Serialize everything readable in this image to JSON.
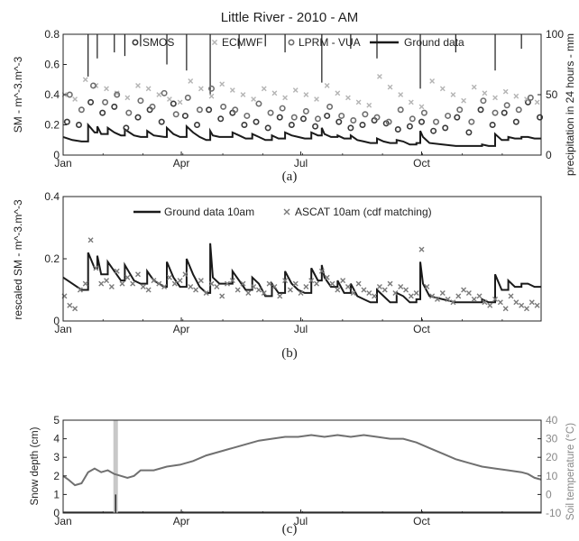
{
  "colors": {
    "ground": "#1a1a1a",
    "smos": "#3a3a3a",
    "ecmwf": "#b4b4b4",
    "lprm": "#6e6e6e",
    "ascat": "#7a7a7a",
    "soil": "#707070",
    "snow_bar": "#c8c8c8",
    "axis": "#222222",
    "right_axis_text": "#888888"
  },
  "chart_data": [
    {
      "type": "scatter",
      "panel_label": "(a)",
      "title": "Little River - 2010 - AM",
      "xlabel": "",
      "ylabel": "SM - m^-3.m^-3",
      "ylabel_right": "precipitation in 24 hours - mm",
      "xticks": [
        "Jan",
        "Apr",
        "Jul",
        "Oct"
      ],
      "xtick_days": [
        1,
        91,
        182,
        274
      ],
      "xlim": [
        1,
        365
      ],
      "ylim": [
        0,
        0.8
      ],
      "yticks": [
        "0",
        "0.2",
        "0.4",
        "0.6",
        "0.8"
      ],
      "yticks_right": [
        "0",
        "50",
        "100"
      ],
      "ylim_right": [
        0,
        100
      ],
      "right_axis_inverted": true,
      "legend": [
        "SMOS",
        "ECMWF",
        "LPRM - VUA",
        "Ground data"
      ],
      "legend_location": "top",
      "series": [
        {
          "name": "Ground data",
          "style": "line",
          "x": [
            1,
            8,
            15,
            20,
            22,
            25,
            27,
            30,
            35,
            40,
            45,
            48,
            55,
            60,
            65,
            70,
            78,
            80,
            85,
            90,
            95,
            100,
            105,
            110,
            113,
            115,
            120,
            130,
            135,
            140,
            145,
            150,
            155,
            160,
            165,
            170,
            175,
            180,
            185,
            190,
            195,
            198,
            200,
            205,
            210,
            215,
            220,
            225,
            230,
            235,
            240,
            245,
            250,
            255,
            260,
            265,
            270,
            273,
            275,
            280,
            290,
            300,
            310,
            320,
            325,
            330,
            335,
            340,
            345,
            350,
            355,
            360,
            365
          ],
          "y": [
            0.12,
            0.1,
            0.09,
            0.2,
            0.18,
            0.15,
            0.19,
            0.14,
            0.18,
            0.15,
            0.13,
            0.17,
            0.13,
            0.12,
            0.16,
            0.13,
            0.12,
            0.18,
            0.14,
            0.12,
            0.19,
            0.15,
            0.12,
            0.1,
            0.16,
            0.13,
            0.12,
            0.15,
            0.13,
            0.11,
            0.14,
            0.12,
            0.1,
            0.13,
            0.11,
            0.15,
            0.13,
            0.12,
            0.11,
            0.15,
            0.13,
            0.18,
            0.14,
            0.12,
            0.13,
            0.11,
            0.13,
            0.1,
            0.09,
            0.08,
            0.11,
            0.09,
            0.08,
            0.1,
            0.09,
            0.07,
            0.08,
            0.16,
            0.12,
            0.08,
            0.07,
            0.06,
            0.06,
            0.07,
            0.06,
            0.14,
            0.1,
            0.12,
            0.11,
            0.12,
            0.12,
            0.11,
            0.11
          ]
        },
        {
          "name": "SMOS",
          "style": "circle",
          "x": [
            4,
            13,
            22,
            31,
            40,
            49,
            58,
            67,
            76,
            85,
            94,
            103,
            112,
            121,
            130,
            139,
            148,
            157,
            166,
            175,
            184,
            193,
            202,
            211,
            220,
            229,
            238,
            247,
            256,
            265,
            274,
            283,
            292,
            301,
            310,
            319,
            328,
            337,
            346,
            355,
            364
          ],
          "y": [
            0.22,
            0.2,
            0.35,
            0.28,
            0.32,
            0.18,
            0.25,
            0.3,
            0.22,
            0.34,
            0.26,
            0.2,
            0.3,
            0.24,
            0.28,
            0.2,
            0.22,
            0.18,
            0.25,
            0.2,
            0.24,
            0.19,
            0.26,
            0.22,
            0.18,
            0.2,
            0.23,
            0.21,
            0.17,
            0.19,
            0.22,
            0.16,
            0.18,
            0.25,
            0.15,
            0.3,
            0.2,
            0.28,
            0.22,
            0.35,
            0.25
          ]
        },
        {
          "name": "ECMWF",
          "style": "x",
          "x": [
            2,
            10,
            18,
            26,
            34,
            42,
            50,
            58,
            66,
            74,
            82,
            90,
            98,
            106,
            114,
            122,
            130,
            138,
            146,
            154,
            162,
            170,
            178,
            186,
            194,
            202,
            210,
            218,
            226,
            234,
            242,
            250,
            258,
            266,
            274,
            282,
            290,
            298,
            306,
            314,
            322,
            330,
            338,
            346,
            354,
            362
          ],
          "y": [
            0.4,
            0.37,
            0.5,
            0.46,
            0.44,
            0.41,
            0.38,
            0.46,
            0.44,
            0.4,
            0.37,
            0.35,
            0.49,
            0.44,
            0.39,
            0.47,
            0.43,
            0.4,
            0.37,
            0.44,
            0.41,
            0.38,
            0.43,
            0.4,
            0.37,
            0.46,
            0.41,
            0.38,
            0.35,
            0.33,
            0.52,
            0.45,
            0.4,
            0.35,
            0.32,
            0.49,
            0.44,
            0.4,
            0.36,
            0.45,
            0.41,
            0.38,
            0.42,
            0.39,
            0.37,
            0.35
          ]
        },
        {
          "name": "LPRM - VUA",
          "style": "circle",
          "x": [
            6,
            15,
            24,
            33,
            42,
            51,
            60,
            69,
            78,
            87,
            96,
            105,
            114,
            123,
            132,
            141,
            150,
            159,
            168,
            177,
            186,
            195,
            204,
            213,
            222,
            231,
            240,
            249,
            258,
            267,
            276,
            285,
            294,
            303,
            312,
            321,
            330,
            339,
            348,
            357
          ],
          "y": [
            0.4,
            0.3,
            0.46,
            0.35,
            0.4,
            0.28,
            0.36,
            0.32,
            0.41,
            0.27,
            0.38,
            0.3,
            0.44,
            0.32,
            0.3,
            0.26,
            0.34,
            0.28,
            0.31,
            0.25,
            0.29,
            0.24,
            0.32,
            0.26,
            0.23,
            0.27,
            0.25,
            0.22,
            0.3,
            0.24,
            0.28,
            0.22,
            0.26,
            0.3,
            0.22,
            0.36,
            0.28,
            0.33,
            0.3,
            0.38
          ]
        }
      ],
      "precipitation": {
        "x": [
          20,
          27,
          40,
          48,
          60,
          80,
          95,
          113,
          135,
          155,
          170,
          198,
          220,
          240,
          273,
          300,
          330,
          350
        ],
        "y": [
          35,
          20,
          15,
          18,
          10,
          25,
          30,
          50,
          12,
          10,
          15,
          40,
          12,
          20,
          45,
          15,
          30,
          12
        ]
      }
    },
    {
      "type": "line",
      "panel_label": "(b)",
      "title": "",
      "xlabel": "",
      "ylabel": "rescaled SM - m^-3.m^-3",
      "xticks": [
        "Jan",
        "Apr",
        "Jul",
        "Oct"
      ],
      "xtick_days": [
        1,
        91,
        182,
        274
      ],
      "xlim": [
        1,
        365
      ],
      "ylim": [
        0,
        0.4
      ],
      "yticks": [
        "0",
        "0.2",
        "0.4"
      ],
      "legend": [
        "Ground data 10am",
        "ASCAT 10am (cdf matching)"
      ],
      "legend_location": "top",
      "series": [
        {
          "name": "Ground data 10am",
          "style": "line",
          "x": [
            1,
            8,
            15,
            20,
            22,
            25,
            27,
            30,
            35,
            40,
            45,
            48,
            55,
            60,
            65,
            70,
            78,
            80,
            85,
            90,
            95,
            100,
            105,
            110,
            113,
            115,
            120,
            130,
            135,
            140,
            145,
            150,
            155,
            160,
            165,
            170,
            175,
            180,
            185,
            190,
            195,
            198,
            200,
            205,
            210,
            215,
            220,
            225,
            230,
            235,
            240,
            245,
            250,
            255,
            260,
            265,
            270,
            273,
            275,
            280,
            290,
            300,
            310,
            320,
            325,
            330,
            335,
            340,
            345,
            350,
            355,
            360,
            365
          ],
          "y": [
            0.14,
            0.12,
            0.1,
            0.22,
            0.2,
            0.17,
            0.21,
            0.15,
            0.19,
            0.16,
            0.13,
            0.18,
            0.13,
            0.12,
            0.16,
            0.13,
            0.11,
            0.19,
            0.14,
            0.11,
            0.2,
            0.15,
            0.11,
            0.09,
            0.25,
            0.14,
            0.12,
            0.16,
            0.13,
            0.1,
            0.14,
            0.12,
            0.08,
            0.12,
            0.09,
            0.16,
            0.12,
            0.1,
            0.09,
            0.17,
            0.13,
            0.18,
            0.14,
            0.11,
            0.13,
            0.09,
            0.12,
            0.08,
            0.07,
            0.06,
            0.1,
            0.08,
            0.06,
            0.09,
            0.08,
            0.06,
            0.07,
            0.19,
            0.12,
            0.08,
            0.07,
            0.06,
            0.06,
            0.07,
            0.06,
            0.15,
            0.1,
            0.13,
            0.11,
            0.12,
            0.12,
            0.11,
            0.11
          ]
        },
        {
          "name": "ASCAT 10am (cdf matching)",
          "style": "x",
          "x": [
            2,
            6,
            10,
            14,
            18,
            22,
            26,
            30,
            34,
            38,
            42,
            46,
            50,
            54,
            58,
            62,
            66,
            70,
            74,
            78,
            82,
            86,
            90,
            94,
            98,
            102,
            106,
            110,
            114,
            118,
            122,
            126,
            130,
            134,
            138,
            142,
            146,
            150,
            154,
            158,
            162,
            166,
            170,
            174,
            178,
            182,
            186,
            190,
            194,
            198,
            202,
            206,
            210,
            214,
            218,
            222,
            226,
            230,
            234,
            238,
            242,
            246,
            250,
            254,
            258,
            262,
            266,
            270,
            274,
            278,
            282,
            286,
            290,
            294,
            298,
            302,
            306,
            310,
            314,
            318,
            322,
            326,
            330,
            334,
            338,
            342,
            346,
            350,
            354,
            358,
            362
          ],
          "y": [
            0.08,
            0.05,
            0.04,
            0.1,
            0.12,
            0.26,
            0.17,
            0.12,
            0.13,
            0.11,
            0.16,
            0.12,
            0.14,
            0.12,
            0.15,
            0.11,
            0.1,
            0.13,
            0.12,
            0.11,
            0.14,
            0.12,
            0.13,
            0.15,
            0.11,
            0.1,
            0.13,
            0.09,
            0.12,
            0.11,
            0.08,
            0.12,
            0.13,
            0.1,
            0.12,
            0.09,
            0.11,
            0.1,
            0.09,
            0.12,
            0.11,
            0.08,
            0.13,
            0.1,
            0.12,
            0.09,
            0.11,
            0.13,
            0.12,
            0.16,
            0.14,
            0.12,
            0.1,
            0.13,
            0.11,
            0.09,
            0.12,
            0.1,
            0.09,
            0.08,
            0.11,
            0.1,
            0.12,
            0.09,
            0.11,
            0.1,
            0.08,
            0.09,
            0.23,
            0.11,
            0.08,
            0.07,
            0.09,
            0.07,
            0.06,
            0.08,
            0.1,
            0.09,
            0.07,
            0.08,
            0.06,
            0.05,
            0.07,
            0.06,
            0.04,
            0.08,
            0.06,
            0.05,
            0.04,
            0.06,
            0.05
          ]
        }
      ]
    },
    {
      "type": "line",
      "panel_label": "(c)",
      "title": "",
      "xlabel": "",
      "ylabel": "Snow depth (cm)",
      "ylabel_right": "Soil temperature (°C)",
      "xticks": [
        "Jan",
        "Apr",
        "Jul",
        "Oct"
      ],
      "xtick_days": [
        1,
        91,
        182,
        274
      ],
      "xlim": [
        1,
        365
      ],
      "ylim": [
        0,
        5
      ],
      "yticks": [
        "0",
        "1",
        "2",
        "3",
        "4",
        "5"
      ],
      "ylim_right": [
        -10,
        40
      ],
      "yticks_right": [
        "-10",
        "0",
        "10",
        "20",
        "30",
        "40"
      ],
      "series": [
        {
          "name": "Snow depth",
          "style": "bar",
          "x": [
            41
          ],
          "y": [
            1.0
          ]
        },
        {
          "name": "Soil temperature",
          "style": "line",
          "axis": "right",
          "x": [
            1,
            5,
            10,
            15,
            20,
            25,
            30,
            35,
            40,
            45,
            50,
            55,
            60,
            70,
            80,
            90,
            100,
            110,
            120,
            130,
            140,
            150,
            160,
            170,
            180,
            190,
            200,
            210,
            220,
            230,
            240,
            250,
            260,
            270,
            280,
            290,
            300,
            310,
            320,
            330,
            340,
            350,
            355,
            360,
            365
          ],
          "y": [
            10,
            8,
            5,
            6,
            12,
            14,
            12,
            13,
            11,
            10,
            9,
            10,
            13,
            13,
            15,
            16,
            18,
            21,
            23,
            25,
            27,
            29,
            30,
            31,
            31,
            32,
            31,
            32,
            31,
            32,
            31,
            30,
            30,
            28,
            25,
            22,
            19,
            17,
            15,
            14,
            13,
            12,
            11,
            9,
            8
          ]
        }
      ]
    }
  ]
}
